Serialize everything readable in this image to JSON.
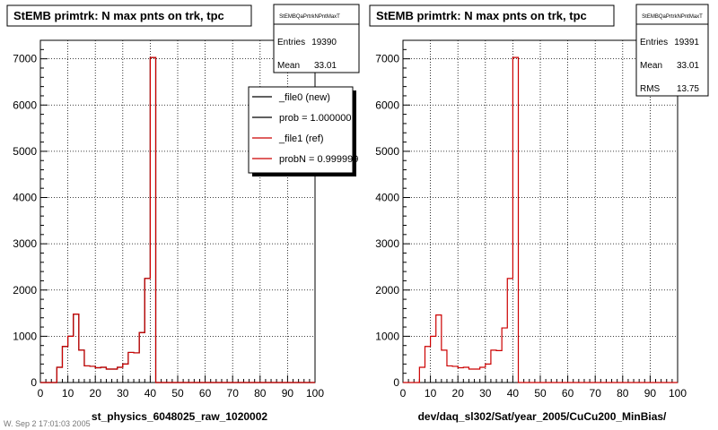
{
  "footer_note": "W. Sep 2 17:01:03 2005",
  "chart_data": [
    {
      "type": "bar",
      "title": "StEMB primtrk: N max pnts on trk, tpc",
      "xlabel": "st_physics_6048025_raw_1020002",
      "ylabel": "",
      "xlim": [
        0,
        100
      ],
      "ylim": [
        0,
        7400
      ],
      "grid": true,
      "x_ticks": [
        0,
        10,
        20,
        30,
        40,
        50,
        60,
        70,
        80,
        90,
        100
      ],
      "y_ticks": [
        0,
        1000,
        2000,
        3000,
        4000,
        5000,
        6000,
        7000
      ],
      "bin_width": 2,
      "bin_start": 0,
      "stats": {
        "name": "StEMBQaPrtrkNPntMaxT",
        "entries": [
          {
            "label": "Entries",
            "value": "19390"
          },
          {
            "label": "Mean",
            "value": "33.01"
          }
        ]
      },
      "legend": {
        "placement": "top-right",
        "entries": [
          {
            "label": "_file0 (new)",
            "color": "#000000"
          },
          {
            "label": "prob = 1.000000",
            "color": "#000000"
          },
          {
            "label": "_file1 (ref)",
            "color": "#cc0000"
          },
          {
            "label": "probN = 0.999999",
            "color": "#cc0000"
          }
        ]
      },
      "series": [
        {
          "name": "_file0 (new)",
          "color": "#000000",
          "values": [
            0,
            0,
            0,
            330,
            780,
            1000,
            1480,
            700,
            360,
            350,
            320,
            330,
            290,
            290,
            330,
            400,
            650,
            640,
            1080,
            2250,
            7030,
            0,
            0,
            0,
            0,
            0,
            0,
            0,
            0,
            0,
            0,
            0,
            0,
            0,
            0,
            0,
            0,
            0,
            0,
            0,
            0,
            0,
            0,
            0,
            0,
            0,
            0,
            0,
            0,
            0
          ]
        },
        {
          "name": "_file1 (ref)",
          "color": "#cc0000",
          "values": [
            0,
            0,
            0,
            330,
            780,
            1000,
            1480,
            700,
            360,
            350,
            320,
            330,
            290,
            290,
            330,
            400,
            650,
            640,
            1080,
            2250,
            7030,
            0,
            0,
            0,
            0,
            0,
            0,
            0,
            0,
            0,
            0,
            0,
            0,
            0,
            0,
            0,
            0,
            0,
            0,
            0,
            0,
            0,
            0,
            0,
            0,
            0,
            0,
            0,
            0,
            0
          ]
        }
      ]
    },
    {
      "type": "bar",
      "title": "StEMB primtrk: N max pnts on trk, tpc",
      "xlabel": "dev/daq_sl302/Sat/year_2005/CuCu200_MinBias/",
      "ylabel": "",
      "xlim": [
        0,
        100
      ],
      "ylim": [
        0,
        7400
      ],
      "grid": true,
      "x_ticks": [
        0,
        10,
        20,
        30,
        40,
        50,
        60,
        70,
        80,
        90,
        100
      ],
      "y_ticks": [
        0,
        1000,
        2000,
        3000,
        4000,
        5000,
        6000,
        7000
      ],
      "bin_width": 2,
      "bin_start": 0,
      "stats": {
        "name": "StEMBQaPrtrkNPntMaxT",
        "entries": [
          {
            "label": "Entries",
            "value": "19391"
          },
          {
            "label": "Mean",
            "value": "33.01"
          },
          {
            "label": "RMS",
            "value": "13.75"
          }
        ]
      },
      "series": [
        {
          "name": "",
          "color": "#cc0000",
          "values": [
            0,
            0,
            0,
            330,
            780,
            1000,
            1460,
            700,
            360,
            350,
            320,
            330,
            290,
            290,
            330,
            400,
            700,
            690,
            1180,
            2250,
            7030,
            0,
            0,
            0,
            0,
            0,
            0,
            0,
            0,
            0,
            0,
            0,
            0,
            0,
            0,
            0,
            0,
            0,
            0,
            0,
            0,
            0,
            0,
            0,
            0,
            0,
            0,
            0,
            0,
            0
          ]
        }
      ]
    }
  ]
}
